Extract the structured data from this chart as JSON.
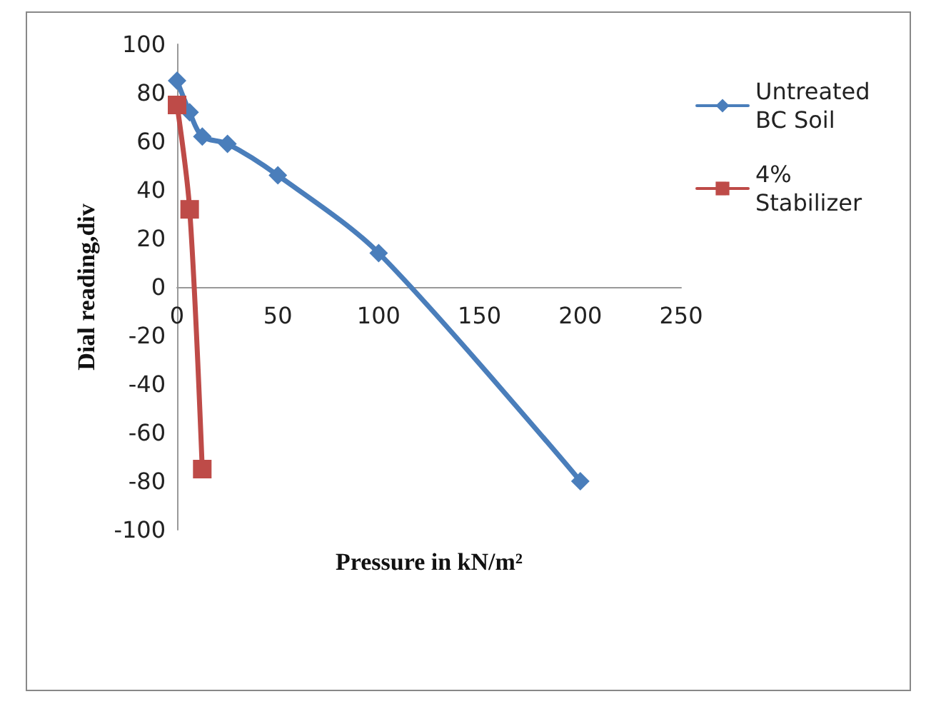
{
  "chart_data": {
    "type": "line",
    "xlabel": "Pressure in kN/m²",
    "ylabel": "Dial reading,div",
    "xlim": [
      0,
      250
    ],
    "xticks": [
      0,
      50,
      100,
      150,
      200,
      250
    ],
    "ylim": [
      -100,
      100
    ],
    "yticks": [
      -100,
      -80,
      -60,
      -40,
      -20,
      0,
      20,
      40,
      60,
      80,
      100
    ],
    "grid": false,
    "legend": "right",
    "line_style": "solid",
    "series": [
      {
        "name": "Untreated BC Soil",
        "color": "#4a7ebb",
        "marker": "diamond",
        "x": [
          0,
          6.25,
          12.5,
          25,
          50,
          100,
          200
        ],
        "values": [
          85,
          72,
          62,
          59,
          46,
          14,
          -80
        ]
      },
      {
        "name": "4% Stabilizer",
        "color": "#be4b48",
        "marker": "square",
        "x": [
          0,
          6.25,
          12.5
        ],
        "values": [
          75,
          32,
          -75
        ]
      }
    ]
  }
}
